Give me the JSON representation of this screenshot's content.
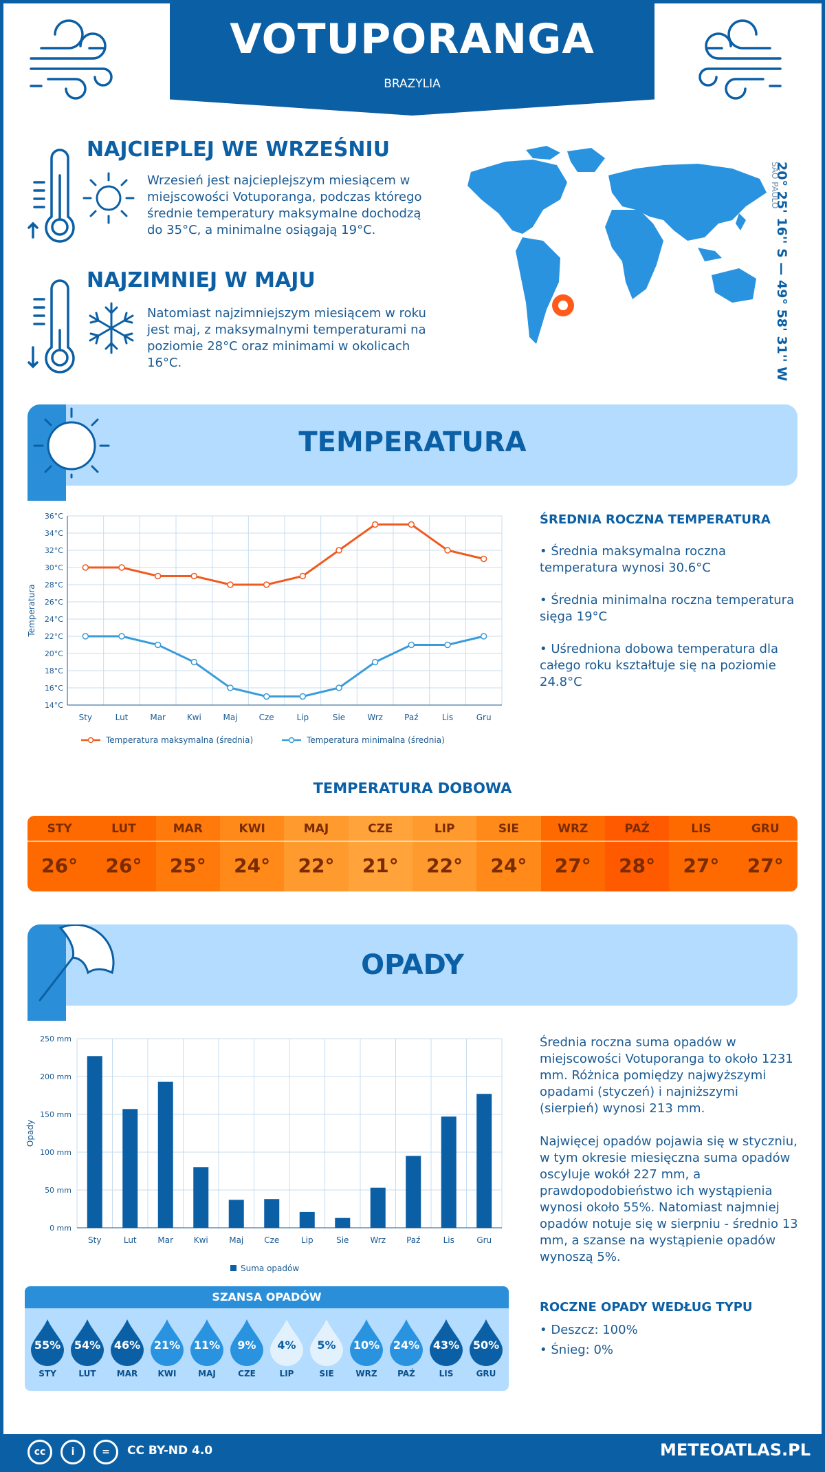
{
  "header": {
    "city": "VOTUPORANGA",
    "country": "BRAZYLIA"
  },
  "coordinates": {
    "value": "20° 25' 16'' S — 49° 58' 31'' W",
    "region": "SÃO PAULO"
  },
  "warmest": {
    "title": "NAJCIEPLEJ WE WRZEŚNIU",
    "text": "Wrzesień jest najcieplejszym miesiącem w miejscowości Votuporanga, podczas którego średnie temperatury maksymalne dochodzą do 35°C, a minimalne osiągają 19°C."
  },
  "coldest": {
    "title": "NAJZIMNIEJ W MAJU",
    "text": "Natomiast najzimniejszym miesiącem w roku jest maj, z maksymalnymi temperaturami na poziomie 28°C oraz minimami w okolicach 16°C."
  },
  "temperature": {
    "title": "TEMPERATURA",
    "side_heading": "ŚREDNIA ROCZNA TEMPERATURA",
    "bullets": [
      "• Średnia maksymalna roczna temperatura wynosi 30.6°C",
      "• Średnia minimalna roczna temperatura sięga 19°C",
      "• Uśredniona dobowa temperatura dla całego roku kształtuje się na poziomie 24.8°C"
    ]
  },
  "daily": {
    "title": "TEMPERATURA DOBOWA",
    "months": [
      "STY",
      "LUT",
      "MAR",
      "KWI",
      "MAJ",
      "CZE",
      "LIP",
      "SIE",
      "WRZ",
      "PAŹ",
      "LIS",
      "GRU"
    ],
    "values": [
      "26°",
      "26°",
      "25°",
      "24°",
      "22°",
      "21°",
      "22°",
      "24°",
      "27°",
      "28°",
      "27°",
      "27°"
    ],
    "colors": [
      "#ff6a00",
      "#ff6a00",
      "#ff7a0a",
      "#ff8a1a",
      "#ff9a2e",
      "#ffa33a",
      "#ff9a2e",
      "#ff8a1a",
      "#ff6a00",
      "#ff5a00",
      "#ff6a00",
      "#ff6a00"
    ]
  },
  "precip": {
    "title": "OPADY",
    "text1": "Średnia roczna suma opadów w miejscowości Votuporanga to około 1231 mm. Różnica pomiędzy najwyższymi opadami (styczeń) i najniższymi (sierpień) wynosi 213 mm.",
    "text2": "Najwięcej opadów pojawia się w styczniu, w tym okresie miesięczna suma opadów oscyluje wokół 227 mm, a prawdopodobieństwo ich wystąpienia wynosi około 55%. Natomiast najmniej opadów notuje się w sierpniu - średnio 13 mm, a szanse na wystąpienie opadów wynoszą 5%.",
    "chance_title": "SZANSA OPADÓW",
    "chance_months": [
      "STY",
      "LUT",
      "MAR",
      "KWI",
      "MAJ",
      "CZE",
      "LIP",
      "SIE",
      "WRZ",
      "PAŹ",
      "LIS",
      "GRU"
    ],
    "chance_values": [
      "55%",
      "54%",
      "46%",
      "21%",
      "11%",
      "9%",
      "4%",
      "5%",
      "10%",
      "24%",
      "43%",
      "50%"
    ],
    "types_heading": "ROCZNE OPADY WEDŁUG TYPU",
    "types": [
      "• Deszcz: 100%",
      "• Śnieg: 0%"
    ]
  },
  "chart_data": [
    {
      "type": "line",
      "categories": [
        "Sty",
        "Lut",
        "Mar",
        "Kwi",
        "Maj",
        "Cze",
        "Lip",
        "Sie",
        "Wrz",
        "Paź",
        "Lis",
        "Gru"
      ],
      "series": [
        {
          "name": "Temperatura maksymalna (średnia)",
          "values": [
            30,
            30,
            29,
            29,
            28,
            28,
            29,
            32,
            35,
            35,
            32,
            31
          ],
          "color": "#f05a1e"
        },
        {
          "name": "Temperatura minimalna (średnia)",
          "values": [
            22,
            22,
            21,
            19,
            16,
            15,
            15,
            16,
            19,
            21,
            21,
            22
          ],
          "color": "#3a9bd9"
        }
      ],
      "ylabel": "Temperatura",
      "ylim": [
        14,
        36
      ],
      "yticks": [
        "14°C",
        "16°C",
        "18°C",
        "20°C",
        "22°C",
        "24°C",
        "26°C",
        "28°C",
        "30°C",
        "32°C",
        "34°C",
        "36°C"
      ],
      "grid": true,
      "legend": "bottom"
    },
    {
      "type": "bar",
      "categories": [
        "Sty",
        "Lut",
        "Mar",
        "Kwi",
        "Maj",
        "Cze",
        "Lip",
        "Sie",
        "Wrz",
        "Paź",
        "Lis",
        "Gru"
      ],
      "series": [
        {
          "name": "Suma opadów",
          "values": [
            227,
            157,
            193,
            80,
            37,
            38,
            21,
            13,
            53,
            95,
            147,
            177
          ],
          "color": "#0b5fa5"
        }
      ],
      "ylabel": "Opady",
      "ylim": [
        0,
        250
      ],
      "yticks": [
        "0 mm",
        "50 mm",
        "100 mm",
        "150 mm",
        "200 mm",
        "250 mm"
      ],
      "grid": true,
      "legend": "bottom"
    }
  ],
  "footer": {
    "license": "CC BY-ND 4.0",
    "brand": "METEOATLAS.PL"
  }
}
